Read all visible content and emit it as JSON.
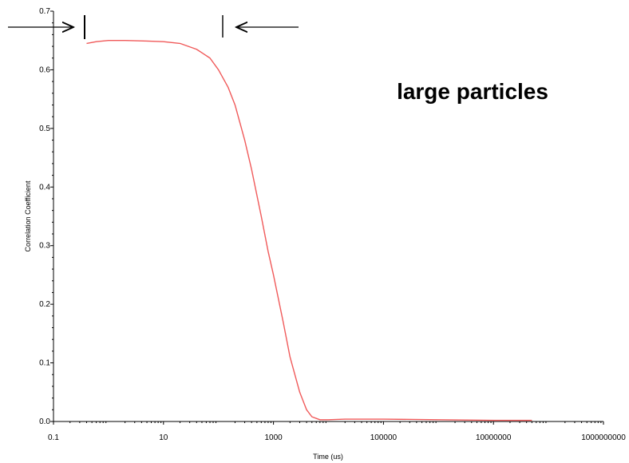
{
  "chart_data": {
    "type": "line",
    "title": "",
    "xlabel": "Time (us)",
    "ylabel": "Correlation Coefficient",
    "x_scale": "log",
    "xlim": [
      0.1,
      1000000000
    ],
    "ylim": [
      0,
      0.7
    ],
    "x_ticks": [
      0.1,
      10,
      1000,
      100000,
      10000000,
      1000000000
    ],
    "x_tick_labels": [
      "0.1",
      "10",
      "1000",
      "100000",
      "10000000",
      "1000000000"
    ],
    "y_ticks": [
      0,
      0.1,
      0.2,
      0.3,
      0.4,
      0.5,
      0.6,
      0.7
    ],
    "y_tick_labels": [
      "0.0",
      "0.1",
      "0.2",
      "0.3",
      "0.4",
      "0.5",
      "0.6",
      "0.7"
    ],
    "grid": false,
    "legend": "none",
    "annotation": "large particles",
    "series": [
      {
        "color": "#f05a5a",
        "x": [
          0.4,
          0.6,
          1,
          2,
          5,
          10,
          20,
          40,
          70,
          100,
          150,
          200,
          300,
          400,
          600,
          800,
          1000,
          1500,
          2000,
          3000,
          4000,
          5000,
          7000,
          10000,
          20000,
          50000,
          100000,
          1000000,
          10000000,
          50000000
        ],
        "y": [
          0.645,
          0.648,
          0.65,
          0.65,
          0.649,
          0.648,
          0.645,
          0.635,
          0.62,
          0.6,
          0.57,
          0.54,
          0.48,
          0.43,
          0.35,
          0.29,
          0.25,
          0.17,
          0.11,
          0.05,
          0.02,
          0.008,
          0.003,
          0.003,
          0.004,
          0.004,
          0.004,
          0.003,
          0.002,
          0.002
        ]
      }
    ],
    "markers": {
      "left_mark_x": 0.3,
      "right_mark_x": 100
    }
  }
}
